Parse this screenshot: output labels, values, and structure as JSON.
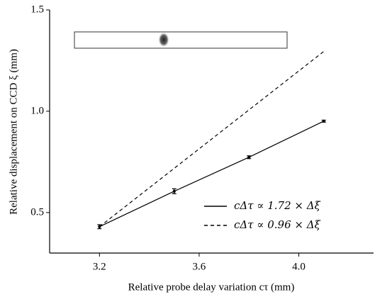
{
  "chart_data": {
    "type": "line",
    "x_label": "Relative probe delay variation cτ (mm)",
    "y_label": "Relative displacement on CCD ξ (mm)",
    "xlim": [
      3.0,
      4.3
    ],
    "xticks": [
      3.2,
      3.6,
      {
        "value": 4,
        "label": "4.0"
      }
    ],
    "ylim": [
      0.3,
      1.5
    ],
    "yticks": [
      0.5,
      {
        "value": 1,
        "label": "1.0"
      },
      1.5
    ],
    "legend": "lower right",
    "series": [
      {
        "name": "cΔτ ∝ 1.72 × Δξ",
        "color": "#000000",
        "dash": "solid",
        "x": [
          3.2,
          3.5,
          3.8,
          4.1
        ],
        "values": [
          0.43,
          0.605,
          0.773,
          0.951
        ],
        "errors": [
          0.01,
          0.012,
          0.007,
          0.005
        ]
      },
      {
        "name": "cΔτ ∝ 0.96 × Δξ",
        "color": "#000000",
        "dash": "dashed",
        "x": [
          3.2,
          4.1
        ],
        "values": [
          0.43,
          1.295
        ]
      }
    ]
  }
}
